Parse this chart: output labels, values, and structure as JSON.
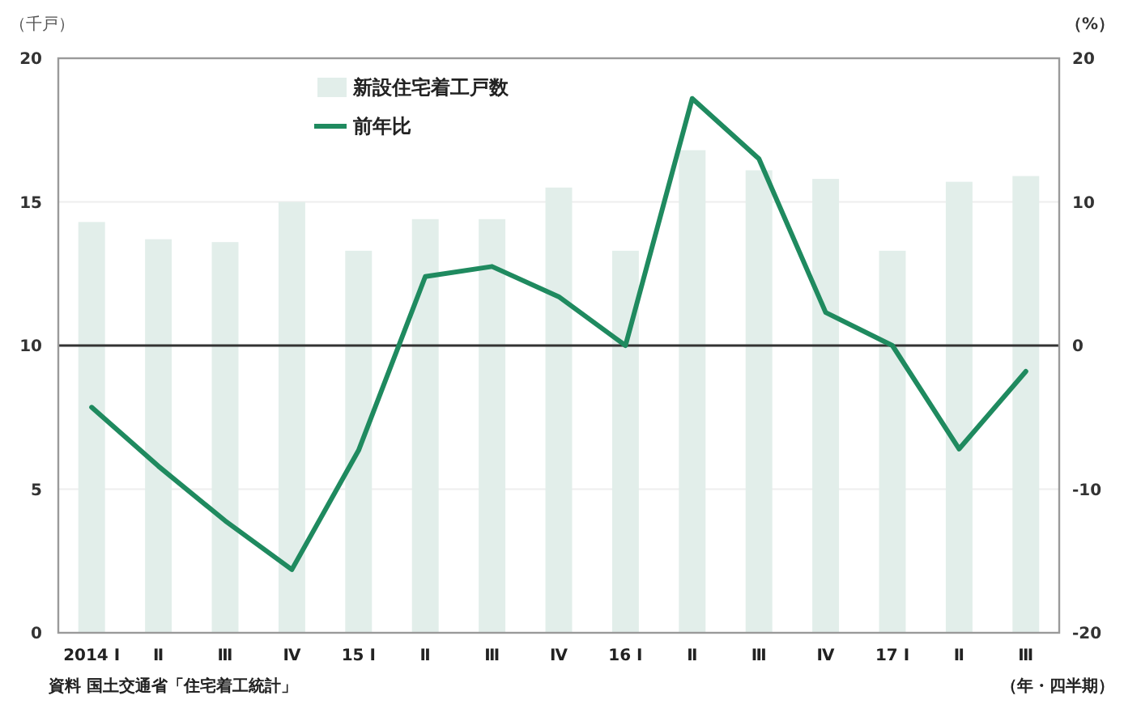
{
  "chart_data": {
    "type": "bar",
    "categories": [
      "2014 Ⅰ",
      "Ⅱ",
      "Ⅲ",
      "Ⅳ",
      "15 Ⅰ",
      "Ⅱ",
      "Ⅲ",
      "Ⅳ",
      "16 Ⅰ",
      "Ⅱ",
      "Ⅲ",
      "Ⅳ",
      "17 Ⅰ",
      "Ⅱ",
      "Ⅲ"
    ],
    "series": [
      {
        "name": "新設住宅着工戸数",
        "color": "#e2eeea",
        "values": [
          14.3,
          13.7,
          13.6,
          15.0,
          13.3,
          14.4,
          14.4,
          15.5,
          13.3,
          16.8,
          16.1,
          15.8,
          13.3,
          15.7,
          15.9
        ]
      },
      {
        "name": "前年比",
        "type": "line",
        "axis": "y2",
        "color": "#1f8a5f",
        "values": [
          -4.3,
          -8.4,
          -12.2,
          -15.6,
          -7.3,
          4.8,
          5.5,
          3.4,
          0.0,
          17.2,
          13.0,
          2.3,
          0.0,
          -7.2,
          -1.8
        ]
      }
    ],
    "ylabel": "（千戸）",
    "y2label": "（%）",
    "xlabel": "（年・四半期）",
    "annotations": [
      "資料 国土交通省「住宅着工統計」"
    ],
    "ylim": [
      0,
      20
    ],
    "yticks": [
      0,
      5,
      10,
      15,
      20
    ],
    "y2lim": [
      -20,
      20
    ],
    "y2ticks": [
      -20,
      -10,
      0,
      10,
      20
    ],
    "ref_lines": [
      {
        "axis": "y2",
        "value": 0,
        "color": "#333333"
      }
    ],
    "grid": "y",
    "legend": "top left",
    "line_style": "solid"
  }
}
